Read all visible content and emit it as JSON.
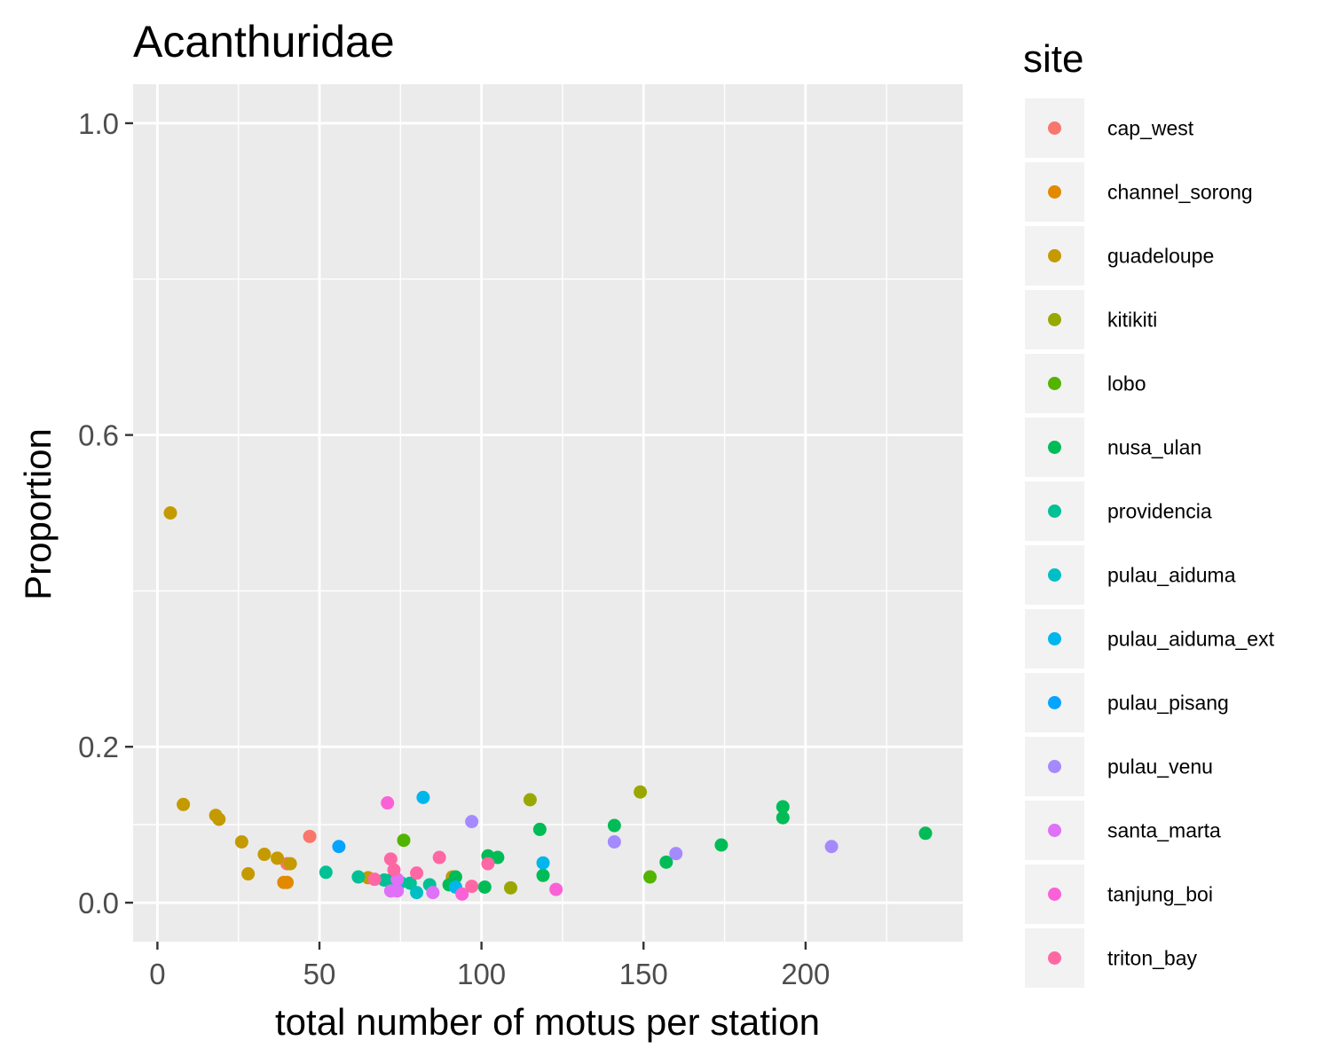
{
  "chart_data": {
    "type": "scatter",
    "title": "Acanthuridae",
    "xlabel": "total number of motus per station",
    "ylabel": "Proportion",
    "xlim": [
      -7.5,
      248.5
    ],
    "ylim": [
      -0.05,
      1.05
    ],
    "x_ticks": [
      0,
      50,
      100,
      150,
      200
    ],
    "y_ticks": [
      0.0,
      0.2,
      0.6,
      1.0
    ],
    "y_tick_labels": [
      "0.0",
      "0.2",
      "0.6",
      "1.0"
    ],
    "x_minor_ticks": [
      25,
      75,
      125,
      175,
      225
    ],
    "y_minor_ticks": [
      0.1,
      0.4,
      0.8
    ],
    "grid": true,
    "legend_title": "site",
    "legend_position": "right",
    "series": [
      {
        "name": "cap_west",
        "color": "#F8766D",
        "points": [
          [
            47,
            0.085
          ],
          [
            40,
            0.05
          ]
        ]
      },
      {
        "name": "channel_sorong",
        "color": "#E38900",
        "points": [
          [
            39,
            0.026
          ],
          [
            40,
            0.026
          ]
        ]
      },
      {
        "name": "guadeloupe",
        "color": "#C49A00",
        "points": [
          [
            4,
            0.5
          ],
          [
            8,
            0.126
          ],
          [
            18,
            0.112
          ],
          [
            19,
            0.107
          ],
          [
            26,
            0.078
          ],
          [
            28,
            0.037
          ],
          [
            33,
            0.062
          ],
          [
            37,
            0.057
          ],
          [
            41,
            0.05
          ],
          [
            65,
            0.032
          ],
          [
            91,
            0.033
          ]
        ]
      },
      {
        "name": "kitikiti",
        "color": "#99A800",
        "points": [
          [
            115,
            0.132
          ],
          [
            149,
            0.142
          ],
          [
            109,
            0.019
          ]
        ]
      },
      {
        "name": "lobo",
        "color": "#53B400",
        "points": [
          [
            76,
            0.08
          ],
          [
            152,
            0.033
          ]
        ]
      },
      {
        "name": "nusa_ulan",
        "color": "#00BC56",
        "points": [
          [
            102,
            0.06
          ],
          [
            105,
            0.058
          ],
          [
            118,
            0.094
          ],
          [
            119,
            0.035
          ],
          [
            141,
            0.099
          ],
          [
            157,
            0.052
          ],
          [
            174,
            0.074
          ],
          [
            193,
            0.123
          ],
          [
            193,
            0.109
          ],
          [
            237,
            0.089
          ],
          [
            101,
            0.02
          ],
          [
            90,
            0.023
          ],
          [
            72,
            0.029
          ],
          [
            92,
            0.033
          ]
        ]
      },
      {
        "name": "providencia",
        "color": "#00C094",
        "points": [
          [
            52,
            0.039
          ],
          [
            62,
            0.033
          ],
          [
            70,
            0.029
          ],
          [
            75,
            0.026
          ],
          [
            78,
            0.025
          ],
          [
            84,
            0.023
          ]
        ]
      },
      {
        "name": "pulau_aiduma",
        "color": "#00BFC4",
        "points": [
          [
            80,
            0.013
          ],
          [
            74,
            0.022
          ]
        ]
      },
      {
        "name": "pulau_aiduma_ext",
        "color": "#00B6EB",
        "points": [
          [
            82,
            0.135
          ],
          [
            119,
            0.051
          ],
          [
            92,
            0.02
          ]
        ]
      },
      {
        "name": "pulau_pisang",
        "color": "#06A4FF",
        "points": [
          [
            56,
            0.072
          ]
        ]
      },
      {
        "name": "pulau_venu",
        "color": "#A58AFF",
        "points": [
          [
            97,
            0.104
          ],
          [
            141,
            0.078
          ],
          [
            160,
            0.063
          ],
          [
            208,
            0.072
          ]
        ]
      },
      {
        "name": "santa_marta",
        "color": "#DF70F8",
        "points": [
          [
            72,
            0.015
          ],
          [
            74,
            0.015
          ],
          [
            85,
            0.013
          ],
          [
            74,
            0.03
          ]
        ]
      },
      {
        "name": "tanjung_boi",
        "color": "#FB61D7",
        "points": [
          [
            71,
            0.128
          ],
          [
            123,
            0.017
          ],
          [
            94,
            0.011
          ]
        ]
      },
      {
        "name": "triton_bay",
        "color": "#FF67A4",
        "points": [
          [
            72,
            0.056
          ],
          [
            73,
            0.042
          ],
          [
            87,
            0.058
          ],
          [
            80,
            0.038
          ],
          [
            97,
            0.021
          ],
          [
            102,
            0.05
          ],
          [
            67,
            0.03
          ]
        ]
      }
    ]
  }
}
